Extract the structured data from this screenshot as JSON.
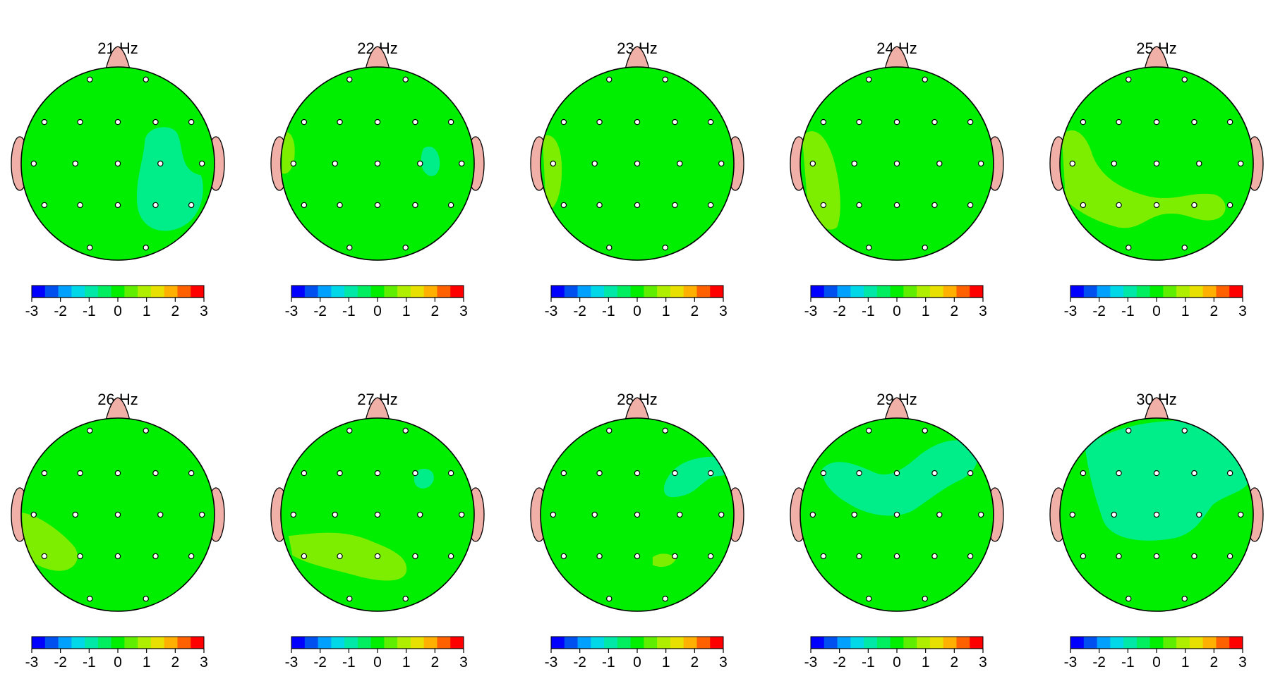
{
  "chart_data": {
    "type": "topographic-map-grid",
    "scale": {
      "min": -3,
      "max": 3,
      "ticks": [
        "-3",
        "-2",
        "-1",
        "0",
        "1",
        "2",
        "3"
      ],
      "bins": [
        "#0000ff",
        "#0050f0",
        "#00a0ff",
        "#00d8e8",
        "#00e8a8",
        "#00ee60",
        "#00ee00",
        "#5fee00",
        "#b0ee00",
        "#e8e000",
        "#ffb000",
        "#ff6000",
        "#ff0000"
      ]
    },
    "maps": [
      {
        "title": "21 Hz",
        "background": "#00ee00",
        "regions": [
          {
            "value": -0.5,
            "color": "#00ee8a",
            "shape": "right-lobe"
          }
        ]
      },
      {
        "title": "22 Hz",
        "background": "#00ee00",
        "regions": [
          {
            "value": 0.5,
            "color": "#7dee00",
            "shape": "left-edge-small"
          },
          {
            "value": -0.5,
            "color": "#00ee8a",
            "shape": "right-spot"
          }
        ]
      },
      {
        "title": "23 Hz",
        "background": "#00ee00",
        "regions": [
          {
            "value": 0.5,
            "color": "#7dee00",
            "shape": "left-edge"
          }
        ]
      },
      {
        "title": "24 Hz",
        "background": "#00ee00",
        "regions": [
          {
            "value": 0.5,
            "color": "#7dee00",
            "shape": "left-lobe"
          }
        ]
      },
      {
        "title": "25 Hz",
        "background": "#00ee00",
        "regions": [
          {
            "value": 0.5,
            "color": "#7dee00",
            "shape": "left-band"
          }
        ]
      },
      {
        "title": "26 Hz",
        "background": "#00ee00",
        "regions": [
          {
            "value": 0.5,
            "color": "#7dee00",
            "shape": "left-low"
          }
        ]
      },
      {
        "title": "27 Hz",
        "background": "#00ee00",
        "regions": [
          {
            "value": 0.5,
            "color": "#7dee00",
            "shape": "lower-left"
          },
          {
            "value": -0.5,
            "color": "#00ee8a",
            "shape": "tiny-right"
          }
        ]
      },
      {
        "title": "28 Hz",
        "background": "#00ee00",
        "regions": [
          {
            "value": -0.5,
            "color": "#00ee8a",
            "shape": "upper-right"
          },
          {
            "value": 0.5,
            "color": "#7dee00",
            "shape": "tiny-bottom"
          }
        ]
      },
      {
        "title": "29 Hz",
        "background": "#00ee00",
        "regions": [
          {
            "value": -0.5,
            "color": "#00ee8a",
            "shape": "central-wave"
          }
        ]
      },
      {
        "title": "30 Hz",
        "background": "#00ee00",
        "regions": [
          {
            "value": -0.5,
            "color": "#00ee8a",
            "shape": "large-upper"
          }
        ]
      }
    ]
  }
}
